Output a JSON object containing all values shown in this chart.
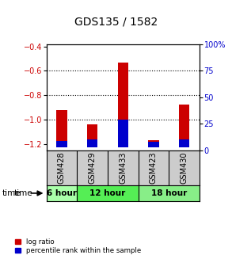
{
  "title": "GDS135 / 1582",
  "samples": [
    "GSM428",
    "GSM429",
    "GSM433",
    "GSM423",
    "GSM430"
  ],
  "log_ratios": [
    -0.92,
    -1.04,
    -0.53,
    -1.17,
    -0.875
  ],
  "percentile_ranks": [
    6,
    7,
    26,
    5,
    7
  ],
  "bar_bottom": -1.225,
  "ylim_left": [
    -1.25,
    -0.38
  ],
  "ylim_right": [
    0,
    100
  ],
  "yticks_left": [
    -1.2,
    -1.0,
    -0.8,
    -0.6,
    -0.4
  ],
  "yticks_right": [
    0,
    25,
    50,
    75,
    100
  ],
  "grid_lines": [
    -0.6,
    -0.8,
    -1.0
  ],
  "time_groups": [
    {
      "label": "6 hour",
      "start": 0,
      "end": 0,
      "color": "#aaffaa"
    },
    {
      "label": "12 hour",
      "start": 1,
      "end": 2,
      "color": "#55ee55"
    },
    {
      "label": "18 hour",
      "start": 3,
      "end": 4,
      "color": "#88ee88"
    }
  ],
  "bar_color_red": "#cc0000",
  "bar_color_blue": "#0000cc",
  "bg_color": "#ffffff",
  "left_tick_color": "#cc0000",
  "right_tick_color": "#0000cc",
  "bar_width": 0.35,
  "legend_red": "log ratio",
  "legend_blue": "percentile rank within the sample"
}
